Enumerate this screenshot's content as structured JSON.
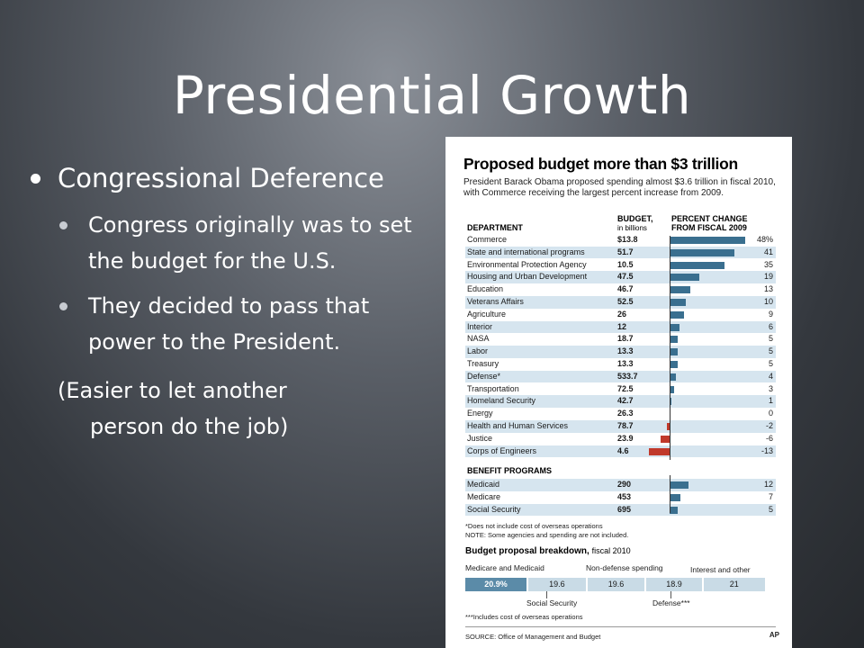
{
  "slide": {
    "title": "Presidential Growth",
    "bullet1": "Congressional Deference",
    "sub_bullets": [
      "Congress originally was to set the budget for the U.S.",
      "They decided to pass that power to the President."
    ],
    "paren_line1": "(Easier to let another",
    "paren_line2": "person do the job)"
  },
  "chart_data": {
    "type": "table",
    "title": "Proposed budget more than $3 trillion",
    "subtitle": "President Barack Obama proposed spending almost $3.6 trillion in fiscal 2010, with Commerce receiving the largest percent increase from 2009.",
    "headers": {
      "department": "DEPARTMENT",
      "budget": "BUDGET,",
      "budget_unit": "in billions",
      "pct_line1": "PERCENT CHANGE",
      "pct_line2": "FROM FISCAL 2009"
    },
    "departments": [
      {
        "name": "Commerce",
        "budget": "$13.8",
        "pct": 48,
        "pct_label": "48%"
      },
      {
        "name": "State and international programs",
        "budget": "51.7",
        "pct": 41,
        "pct_label": "41"
      },
      {
        "name": "Environmental Protection Agency",
        "budget": "10.5",
        "pct": 35,
        "pct_label": "35"
      },
      {
        "name": "Housing and Urban Development",
        "budget": "47.5",
        "pct": 19,
        "pct_label": "19"
      },
      {
        "name": "Education",
        "budget": "46.7",
        "pct": 13,
        "pct_label": "13"
      },
      {
        "name": "Veterans Affairs",
        "budget": "52.5",
        "pct": 10,
        "pct_label": "10"
      },
      {
        "name": "Agriculture",
        "budget": "26",
        "pct": 9,
        "pct_label": "9"
      },
      {
        "name": "Interior",
        "budget": "12",
        "pct": 6,
        "pct_label": "6"
      },
      {
        "name": "NASA",
        "budget": "18.7",
        "pct": 5,
        "pct_label": "5"
      },
      {
        "name": "Labor",
        "budget": "13.3",
        "pct": 5,
        "pct_label": "5"
      },
      {
        "name": "Treasury",
        "budget": "13.3",
        "pct": 5,
        "pct_label": "5"
      },
      {
        "name": "Defense*",
        "budget": "533.7",
        "pct": 4,
        "pct_label": "4"
      },
      {
        "name": "Transportation",
        "budget": "72.5",
        "pct": 3,
        "pct_label": "3"
      },
      {
        "name": "Homeland Security",
        "budget": "42.7",
        "pct": 1,
        "pct_label": "1"
      },
      {
        "name": "Energy",
        "budget": "26.3",
        "pct": 0,
        "pct_label": "0"
      },
      {
        "name": "Health and Human Services",
        "budget": "78.7",
        "pct": -2,
        "pct_label": "-2"
      },
      {
        "name": "Justice",
        "budget": "23.9",
        "pct": -6,
        "pct_label": "-6"
      },
      {
        "name": "Corps of Engineers",
        "budget": "4.6",
        "pct": -13,
        "pct_label": "-13"
      }
    ],
    "benefit_header": "BENEFIT PROGRAMS",
    "benefits": [
      {
        "name": "Medicaid",
        "budget": "290",
        "pct": 12,
        "pct_label": "12"
      },
      {
        "name": "Medicare",
        "budget": "453",
        "pct": 7,
        "pct_label": "7"
      },
      {
        "name": "Social Security",
        "budget": "695",
        "pct": 5,
        "pct_label": "5"
      }
    ],
    "note1": "*Does not include cost of overseas operations",
    "note2": "NOTE: Some agencies and spending are not included.",
    "breakdown": {
      "title": "Budget proposal breakdown,",
      "title_suffix": "fiscal 2010",
      "labels_top": [
        "Medicare and Medicaid",
        "Non-defense spending",
        "Interest and other"
      ],
      "labels_bottom": [
        "Social Security",
        "Defense***"
      ],
      "segments": [
        {
          "label": "20.9%",
          "value": 20.9
        },
        {
          "label": "19.6",
          "value": 19.6
        },
        {
          "label": "19.6",
          "value": 19.6
        },
        {
          "label": "18.9",
          "value": 18.9
        },
        {
          "label": "21",
          "value": 21
        }
      ],
      "footnote": "***Includes cost of overseas operations"
    },
    "source": "SOURCE: Office of Management and Budget",
    "credit": "AP"
  }
}
